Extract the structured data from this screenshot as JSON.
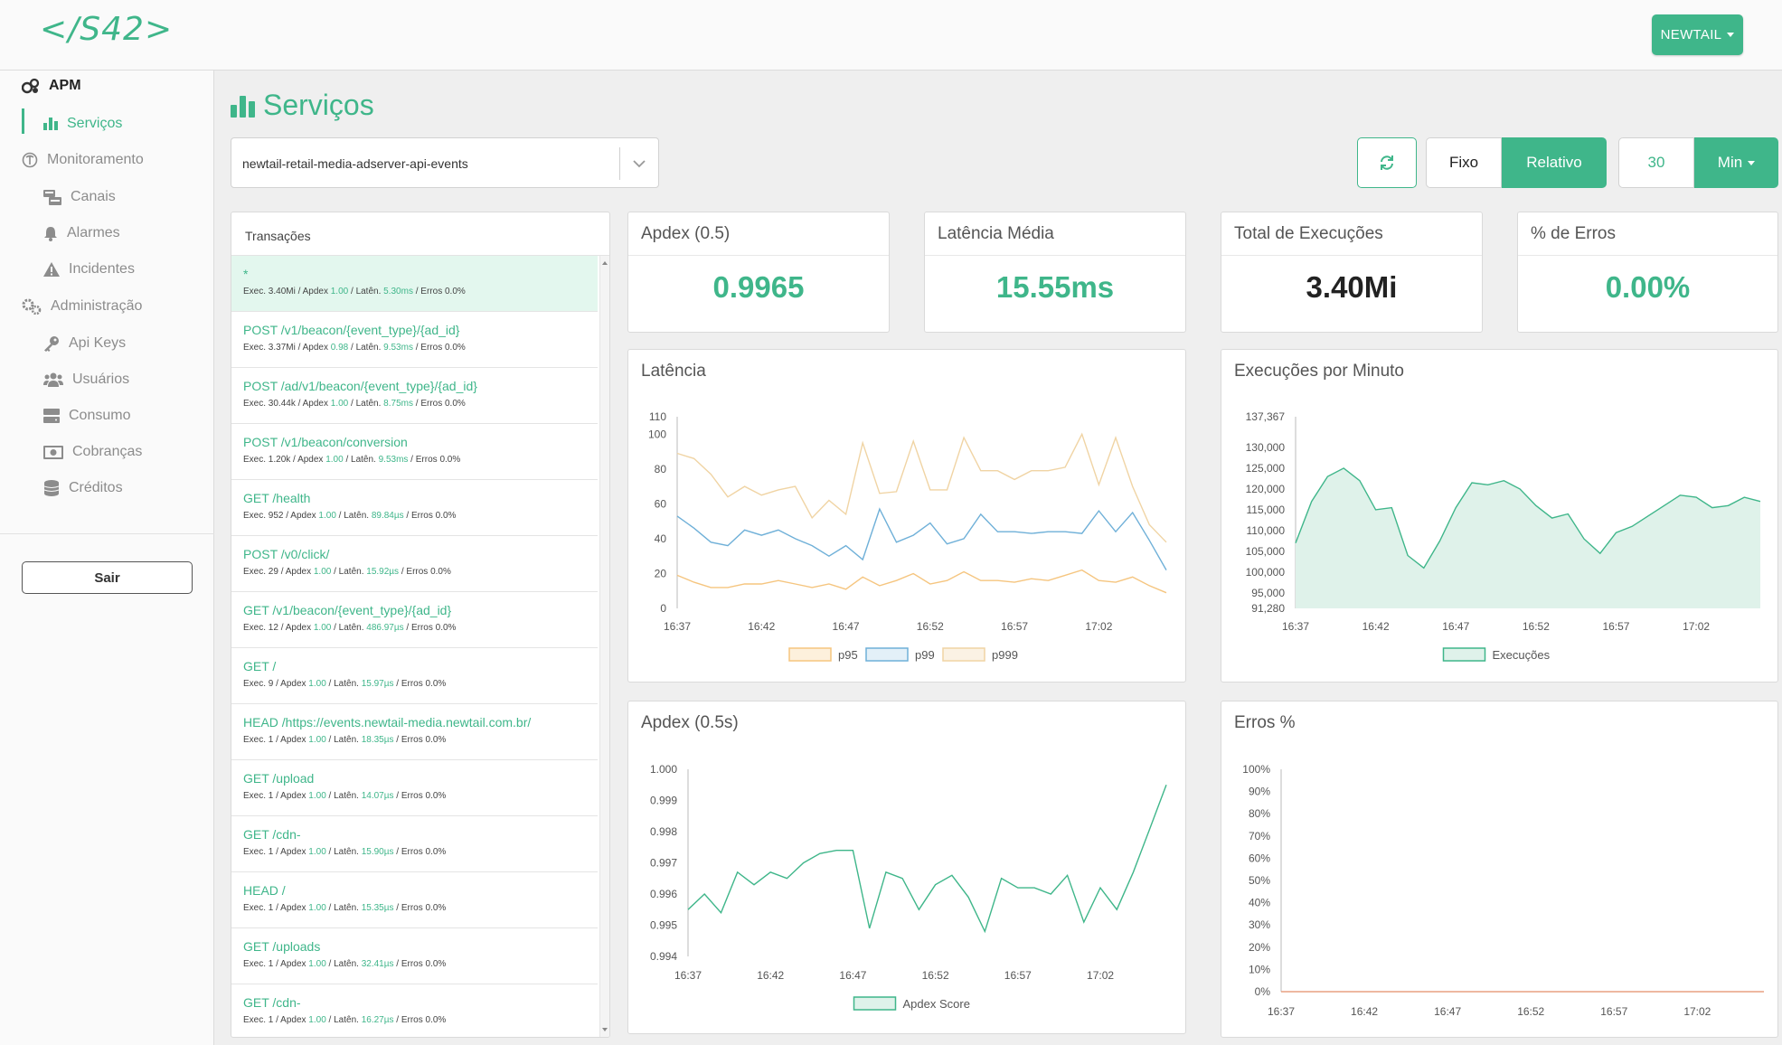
{
  "header": {
    "logo": "</S42>",
    "user_menu": "NEWTAIL"
  },
  "sidebar": {
    "items": [
      {
        "label": "APM",
        "icon": "cogs-icon"
      },
      {
        "label": "Serviços",
        "icon": "bar-chart-icon"
      },
      {
        "label": "Monitoramento",
        "icon": "stethoscope-icon"
      },
      {
        "label": "Canais",
        "icon": "channels-icon"
      },
      {
        "label": "Alarmes",
        "icon": "bell-icon"
      },
      {
        "label": "Incidentes",
        "icon": "warning-icon"
      },
      {
        "label": "Administração",
        "icon": "gears-icon"
      },
      {
        "label": "Api Keys",
        "icon": "key-icon"
      },
      {
        "label": "Usuários",
        "icon": "users-icon"
      },
      {
        "label": "Consumo",
        "icon": "server-icon"
      },
      {
        "label": "Cobranças",
        "icon": "money-icon"
      },
      {
        "label": "Créditos",
        "icon": "coins-icon"
      }
    ],
    "logout": "Sair"
  },
  "main": {
    "title": "Serviços",
    "service": "newtail-retail-media-adserver-api-events",
    "time_mode": {
      "fixed": "Fixo",
      "relative": "Relativo",
      "selected": "Relativo"
    },
    "window_value": "30",
    "window_unit": "Min"
  },
  "transactions": {
    "header": "Transações",
    "labels": {
      "exec": "Exec.",
      "apdex": "Apdex",
      "laten": "Latên.",
      "errors": "Erros"
    },
    "rows": [
      {
        "title": "*",
        "exec": "3.40Mi",
        "apdex": "1.00",
        "latency": "5.30ms",
        "errors": "0.0%"
      },
      {
        "title": "POST /v1/beacon/{event_type}/{ad_id}",
        "exec": "3.37Mi",
        "apdex": "0.98",
        "latency": "9.53ms",
        "errors": "0.0%"
      },
      {
        "title": "POST /ad/v1/beacon/{event_type}/{ad_id}",
        "exec": "30.44k",
        "apdex": "1.00",
        "latency": "8.75ms",
        "errors": "0.0%"
      },
      {
        "title": "POST /v1/beacon/conversion",
        "exec": "1.20k",
        "apdex": "1.00",
        "latency": "9.53ms",
        "errors": "0.0%"
      },
      {
        "title": "GET /health",
        "exec": "952",
        "apdex": "1.00",
        "latency": "89.84µs",
        "errors": "0.0%"
      },
      {
        "title": "POST /v0/click/",
        "exec": "29",
        "apdex": "1.00",
        "latency": "15.92µs",
        "errors": "0.0%"
      },
      {
        "title": "GET /v1/beacon/{event_type}/{ad_id}",
        "exec": "12",
        "apdex": "1.00",
        "latency": "486.97µs",
        "errors": "0.0%"
      },
      {
        "title": "GET /",
        "exec": "9",
        "apdex": "1.00",
        "latency": "15.97µs",
        "errors": "0.0%"
      },
      {
        "title": "HEAD /https://events.newtail-media.newtail.com.br/",
        "exec": "1",
        "apdex": "1.00",
        "latency": "18.35µs",
        "errors": "0.0%"
      },
      {
        "title": "GET /upload",
        "exec": "1",
        "apdex": "1.00",
        "latency": "14.07µs",
        "errors": "0.0%"
      },
      {
        "title": "GET /cdn-",
        "exec": "1",
        "apdex": "1.00",
        "latency": "15.90µs",
        "errors": "0.0%"
      },
      {
        "title": "HEAD /",
        "exec": "1",
        "apdex": "1.00",
        "latency": "15.35µs",
        "errors": "0.0%"
      },
      {
        "title": "GET /uploads",
        "exec": "1",
        "apdex": "1.00",
        "latency": "32.41µs",
        "errors": "0.0%"
      },
      {
        "title": "GET /cdn-",
        "exec": "1",
        "apdex": "1.00",
        "latency": "16.27µs",
        "errors": "0.0%"
      }
    ]
  },
  "metrics": [
    {
      "label": "Apdex (0.5)",
      "value": "0.9965"
    },
    {
      "label": "Latência Média",
      "value": "15.55ms"
    },
    {
      "label": "Total de Execuções",
      "value": "3.40Mi"
    },
    {
      "label": "% de Erros",
      "value": "0.00%"
    }
  ],
  "colors": {
    "accent": "#3fb68a",
    "p95": "#f5c57f",
    "p99": "#6fb0d8",
    "p999": "#f0d4a4",
    "errors_line": "#e8a080"
  },
  "chart_data": [
    {
      "type": "line",
      "title": "Latência",
      "x": [
        "16:37",
        "16:38",
        "16:39",
        "16:40",
        "16:41",
        "16:42",
        "16:43",
        "16:44",
        "16:45",
        "16:46",
        "16:47",
        "16:48",
        "16:49",
        "16:50",
        "16:51",
        "16:52",
        "16:53",
        "16:54",
        "16:55",
        "16:56",
        "16:57",
        "16:58",
        "16:59",
        "17:00",
        "17:01",
        "17:02",
        "17:03",
        "17:04",
        "17:05",
        "17:06"
      ],
      "xticks": [
        "16:37",
        "16:42",
        "16:47",
        "16:52",
        "16:57",
        "17:02"
      ],
      "ylim": [
        0,
        110
      ],
      "yticks": [
        0,
        20,
        40,
        60,
        80,
        100,
        110
      ],
      "series": [
        {
          "name": "p95",
          "values": [
            19,
            15,
            12,
            12,
            14,
            14,
            16,
            14,
            12,
            14,
            11,
            18,
            13,
            16,
            20,
            14,
            16,
            21,
            16,
            16,
            15,
            17,
            16,
            19,
            22,
            16,
            15,
            18,
            13,
            9
          ]
        },
        {
          "name": "p99",
          "values": [
            53,
            46,
            38,
            36,
            45,
            42,
            45,
            40,
            36,
            30,
            36,
            28,
            57,
            38,
            42,
            49,
            37,
            40,
            54,
            44,
            44,
            43,
            44,
            44,
            43,
            56,
            44,
            55,
            39,
            22
          ]
        },
        {
          "name": "p999",
          "values": [
            89,
            86,
            77,
            64,
            70,
            65,
            68,
            70,
            52,
            62,
            54,
            95,
            66,
            67,
            96,
            68,
            68,
            98,
            79,
            79,
            74,
            79,
            79,
            81,
            100,
            71,
            98,
            70,
            48,
            38
          ]
        }
      ]
    },
    {
      "type": "area",
      "title": "Execuções por Minuto",
      "x": [
        "16:37",
        "16:38",
        "16:39",
        "16:40",
        "16:41",
        "16:42",
        "16:43",
        "16:44",
        "16:45",
        "16:46",
        "16:47",
        "16:48",
        "16:49",
        "16:50",
        "16:51",
        "16:52",
        "16:53",
        "16:54",
        "16:55",
        "16:56",
        "16:57",
        "16:58",
        "16:59",
        "17:00",
        "17:01",
        "17:02",
        "17:03",
        "17:04",
        "17:05",
        "17:06"
      ],
      "xticks": [
        "16:37",
        "16:42",
        "16:47",
        "16:52",
        "16:57",
        "17:02"
      ],
      "ylim": [
        91280,
        137367
      ],
      "yticks": [
        91280,
        95000,
        100000,
        105000,
        110000,
        115000,
        120000,
        125000,
        130000,
        137367
      ],
      "series": [
        {
          "name": "Execuções",
          "values": [
            107000,
            117000,
            123000,
            125000,
            122000,
            115000,
            115500,
            104000,
            101000,
            107500,
            115500,
            121500,
            121000,
            122000,
            120000,
            116000,
            113000,
            114000,
            108000,
            104500,
            109500,
            111000,
            113500,
            116000,
            118500,
            118000,
            115500,
            116000,
            118000,
            117000
          ]
        }
      ]
    },
    {
      "type": "line",
      "title": "Apdex (0.5s)",
      "x": [
        "16:37",
        "16:38",
        "16:39",
        "16:40",
        "16:41",
        "16:42",
        "16:43",
        "16:44",
        "16:45",
        "16:46",
        "16:47",
        "16:48",
        "16:49",
        "16:50",
        "16:51",
        "16:52",
        "16:53",
        "16:54",
        "16:55",
        "16:56",
        "16:57",
        "16:58",
        "16:59",
        "17:00",
        "17:01",
        "17:02",
        "17:03",
        "17:04",
        "17:05",
        "17:06"
      ],
      "xticks": [
        "16:37",
        "16:42",
        "16:47",
        "16:52",
        "16:57",
        "17:02"
      ],
      "ylim": [
        0.994,
        1.0
      ],
      "yticks": [
        0.994,
        0.995,
        0.996,
        0.997,
        0.998,
        0.999,
        1.0
      ],
      "series": [
        {
          "name": "Apdex Score",
          "values": [
            0.9955,
            0.996,
            0.9954,
            0.9967,
            0.9963,
            0.9967,
            0.9965,
            0.997,
            0.9973,
            0.9974,
            0.9974,
            0.9949,
            0.9967,
            0.9965,
            0.9955,
            0.9963,
            0.9966,
            0.9959,
            0.9948,
            0.9965,
            0.9962,
            0.9962,
            0.996,
            0.9966,
            0.9951,
            0.9962,
            0.9955,
            0.9967,
            0.9981,
            0.9995
          ]
        }
      ]
    },
    {
      "type": "line",
      "title": "Erros %",
      "x": [
        "16:37",
        "17:06"
      ],
      "xticks": [
        "16:37",
        "16:42",
        "16:47",
        "16:52",
        "16:57",
        "17:02"
      ],
      "ylim": [
        0,
        100
      ],
      "yticks": [
        "0%",
        "10%",
        "20%",
        "30%",
        "40%",
        "50%",
        "60%",
        "70%",
        "80%",
        "90%",
        "100%"
      ],
      "series": [
        {
          "values": [
            0,
            0
          ]
        }
      ]
    }
  ]
}
